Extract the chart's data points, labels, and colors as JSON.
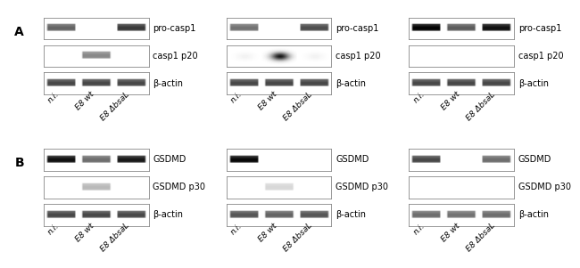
{
  "bg_color": "#ffffff",
  "panel_A_label": "A",
  "panel_B_label": "B",
  "col_labels": [
    "n.i.",
    "E8 wt",
    "E8 ΔbsaL"
  ],
  "row_A_labels": [
    "pro-casp1",
    "casp1 p20",
    "β-actin"
  ],
  "row_B_labels": [
    "GSDMD",
    "GSDMD p30",
    "β-actin"
  ],
  "label_fontsize": 7.0,
  "col_label_fontsize": 6.5,
  "panel_letter_fontsize": 10,
  "panels_A": [
    {
      "rows": [
        {
          "intensities": [
            0.55,
            0.05,
            0.7
          ],
          "spot": false
        },
        {
          "intensities": [
            0.05,
            0.42,
            0.05
          ],
          "spot": false
        },
        {
          "intensities": [
            0.65,
            0.65,
            0.65
          ],
          "spot": false
        }
      ]
    },
    {
      "rows": [
        {
          "intensities": [
            0.5,
            0.05,
            0.63
          ],
          "spot": false
        },
        {
          "intensities": [
            0.05,
            0.92,
            0.05
          ],
          "spot": true
        },
        {
          "intensities": [
            0.65,
            0.65,
            0.65
          ],
          "spot": false
        }
      ]
    },
    {
      "rows": [
        {
          "intensities": [
            0.9,
            0.58,
            0.85
          ],
          "spot": false
        },
        {
          "intensities": [
            0.02,
            0.02,
            0.02
          ],
          "spot": false
        },
        {
          "intensities": [
            0.65,
            0.65,
            0.65
          ],
          "spot": false
        }
      ]
    }
  ],
  "panels_B": [
    {
      "rows": [
        {
          "intensities": [
            0.85,
            0.52,
            0.82
          ],
          "spot": false
        },
        {
          "intensities": [
            0.05,
            0.25,
            0.05
          ],
          "spot": false
        },
        {
          "intensities": [
            0.65,
            0.65,
            0.65
          ],
          "spot": false
        }
      ]
    },
    {
      "rows": [
        {
          "intensities": [
            0.88,
            0.05,
            0.05
          ],
          "spot": false
        },
        {
          "intensities": [
            0.05,
            0.14,
            0.05
          ],
          "spot": false
        },
        {
          "intensities": [
            0.6,
            0.55,
            0.6
          ],
          "spot": false
        }
      ]
    },
    {
      "rows": [
        {
          "intensities": [
            0.65,
            0.05,
            0.52
          ],
          "spot": false
        },
        {
          "intensities": [
            0.04,
            0.04,
            0.04
          ],
          "spot": false
        },
        {
          "intensities": [
            0.52,
            0.5,
            0.52
          ],
          "spot": false
        }
      ]
    }
  ]
}
